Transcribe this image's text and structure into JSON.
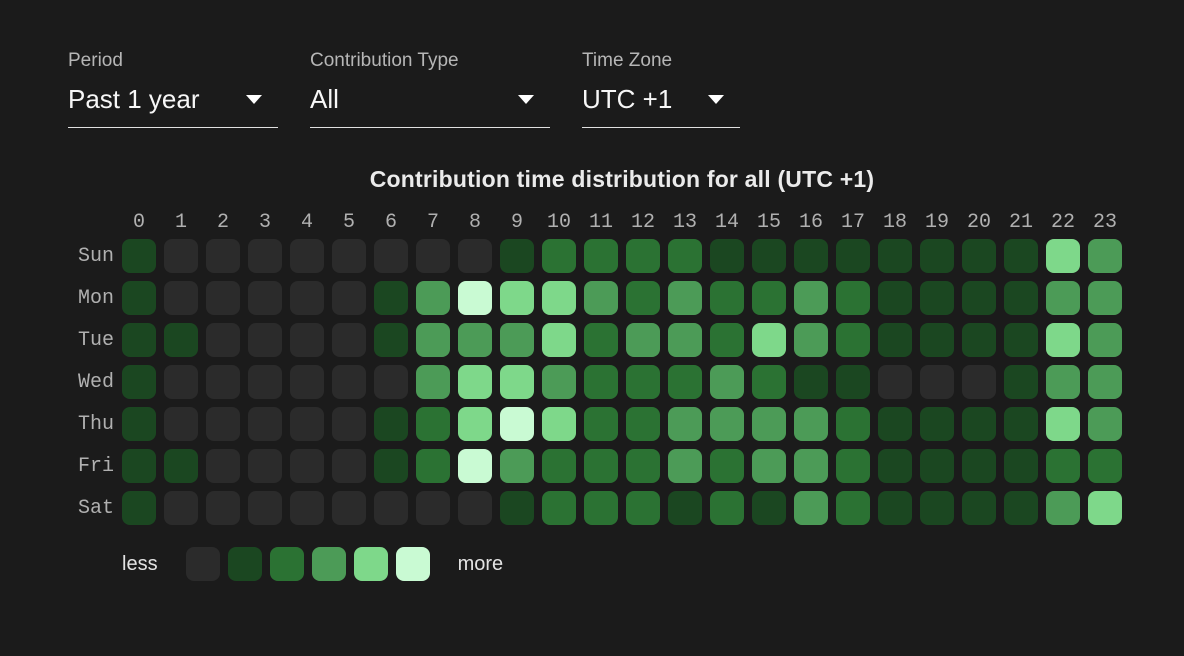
{
  "filters": {
    "period": {
      "label": "Period",
      "value": "Past 1 year"
    },
    "contribution_type": {
      "label": "Contribution Type",
      "value": "All"
    },
    "time_zone": {
      "label": "Time Zone",
      "value": "UTC +1"
    }
  },
  "chart_data": {
    "type": "heatmap",
    "title": "Contribution time distribution for all (UTC +1)",
    "x_labels": [
      "0",
      "1",
      "2",
      "3",
      "4",
      "5",
      "6",
      "7",
      "8",
      "9",
      "10",
      "11",
      "12",
      "13",
      "14",
      "15",
      "16",
      "17",
      "18",
      "19",
      "20",
      "21",
      "22",
      "23"
    ],
    "y_labels": [
      "Sun",
      "Mon",
      "Tue",
      "Wed",
      "Thu",
      "Fri",
      "Sat"
    ],
    "rows": [
      [
        1,
        0,
        0,
        0,
        0,
        0,
        0,
        0,
        0,
        1,
        2,
        2,
        2,
        2,
        1,
        1,
        1,
        1,
        1,
        1,
        1,
        1,
        4,
        3
      ],
      [
        1,
        0,
        0,
        0,
        0,
        0,
        1,
        3,
        5,
        4,
        4,
        3,
        2,
        3,
        2,
        2,
        3,
        2,
        1,
        1,
        1,
        1,
        3,
        3
      ],
      [
        1,
        1,
        0,
        0,
        0,
        0,
        1,
        3,
        3,
        3,
        4,
        2,
        3,
        3,
        2,
        4,
        3,
        2,
        1,
        1,
        1,
        1,
        4,
        3
      ],
      [
        1,
        0,
        0,
        0,
        0,
        0,
        0,
        3,
        4,
        4,
        3,
        2,
        2,
        2,
        3,
        2,
        1,
        1,
        0,
        0,
        0,
        1,
        3,
        3
      ],
      [
        1,
        0,
        0,
        0,
        0,
        0,
        1,
        2,
        4,
        5,
        4,
        2,
        2,
        3,
        3,
        3,
        3,
        2,
        1,
        1,
        1,
        1,
        4,
        3
      ],
      [
        1,
        1,
        0,
        0,
        0,
        0,
        1,
        2,
        5,
        3,
        2,
        2,
        2,
        3,
        2,
        3,
        3,
        2,
        1,
        1,
        1,
        1,
        2,
        2
      ],
      [
        1,
        0,
        0,
        0,
        0,
        0,
        0,
        0,
        0,
        1,
        2,
        2,
        2,
        1,
        2,
        1,
        3,
        2,
        1,
        1,
        1,
        1,
        3,
        4
      ]
    ],
    "palette": [
      "#2b2b2b",
      "#1b4721",
      "#2b7233",
      "#4c9b57",
      "#7ed88a",
      "#c9fad3"
    ],
    "legend": {
      "less_label": "less",
      "more_label": "more"
    },
    "layout": {
      "grid": false,
      "legend_position": "bottom-left"
    }
  }
}
